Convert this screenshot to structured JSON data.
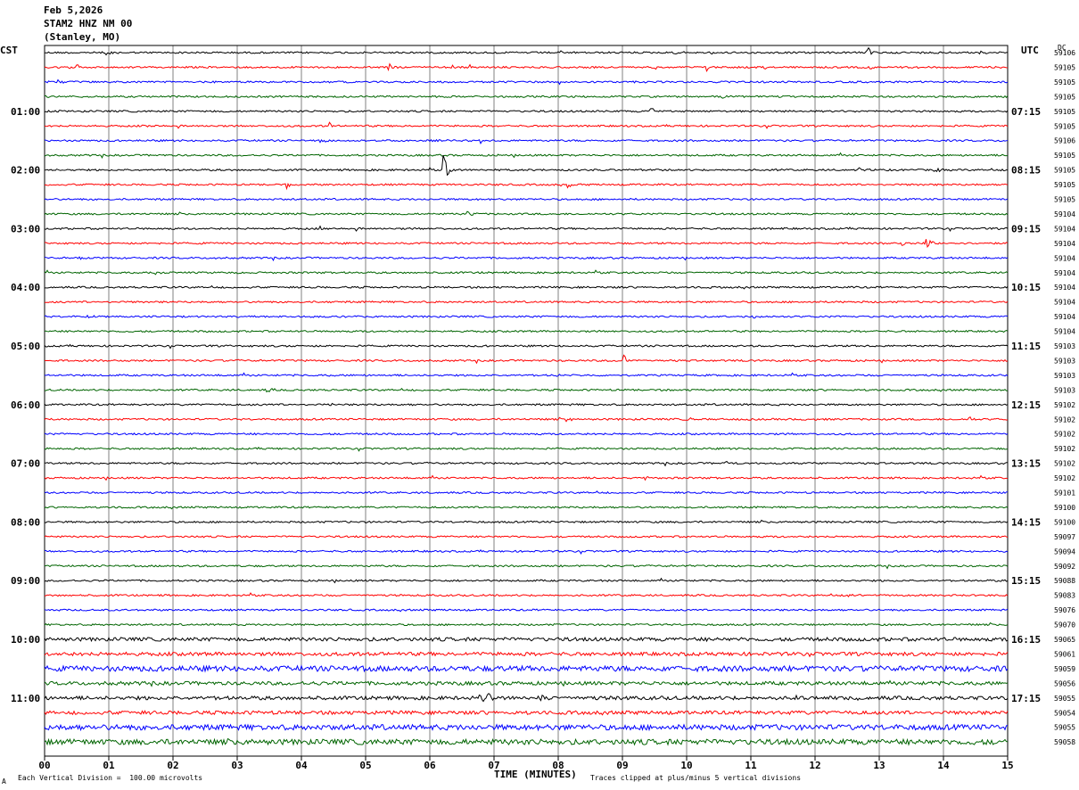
{
  "header": {
    "date": "Feb 5,2026",
    "station": "STAM2 HNZ NM 00",
    "location": "(Stanley, MO)"
  },
  "axes": {
    "left_label": "CST",
    "right_label": "UTC",
    "dc_label": "DC",
    "xlabel": "TIME (MINUTES)"
  },
  "footer": {
    "left_note": "Each Vertical Division =  100.00 microvolts",
    "right_note": "Traces clipped at plus/minus 5 vertical divisions",
    "corner_mark": "A"
  },
  "colors": {
    "trace_cycle": [
      "#000000",
      "#ff0000",
      "#0000ff",
      "#006400"
    ],
    "grid": "#808080"
  },
  "chart_data": {
    "type": "line",
    "title": "",
    "x_range": [
      0,
      15
    ],
    "x_ticks": [
      "00",
      "01",
      "02",
      "03",
      "04",
      "05",
      "06",
      "07",
      "08",
      "09",
      "10",
      "11",
      "12",
      "13",
      "14",
      "15"
    ],
    "cst_hours": [
      "01:00",
      "02:00",
      "03:00",
      "04:00",
      "05:00",
      "06:00",
      "07:00",
      "08:00",
      "09:00",
      "10:00",
      "11:00"
    ],
    "utc_hours": [
      "07:15",
      "08:15",
      "09:15",
      "10:15",
      "11:15",
      "12:15",
      "13:15",
      "14:15",
      "15:15",
      "16:15",
      "17:15"
    ],
    "dc_offsets": [
      "59106",
      "59105",
      "59105",
      "59105",
      "59105",
      "59105",
      "59106",
      "59105",
      "59105",
      "59105",
      "59105",
      "59104",
      "59104",
      "59104",
      "59104",
      "59104",
      "59104",
      "59104",
      "59104",
      "59104",
      "59103",
      "59103",
      "59103",
      "59103",
      "59102",
      "59102",
      "59102",
      "59102",
      "59102",
      "59102",
      "59101",
      "59100",
      "59100",
      "59097",
      "59094",
      "59092",
      "59088",
      "59083",
      "59076",
      "59070",
      "59065",
      "59061",
      "59059",
      "59056",
      "59055",
      "59054",
      "59055",
      "59058"
    ],
    "noise_level": [
      1,
      1,
      1,
      1,
      1,
      1,
      1,
      1,
      1,
      1,
      1,
      1,
      1,
      1,
      1,
      1,
      1,
      1,
      1,
      1,
      1,
      1,
      1,
      1,
      1,
      1,
      1,
      1,
      1,
      1,
      1,
      1,
      1,
      1,
      1,
      1,
      1,
      1,
      1,
      1,
      2,
      2,
      3,
      2,
      2,
      2,
      3,
      3
    ],
    "events": [
      {
        "row": 0,
        "minute": 0.98,
        "amp": 3
      },
      {
        "row": 0,
        "minute": 9.83,
        "amp": 3
      },
      {
        "row": 0,
        "minute": 12.82,
        "amp": 6
      },
      {
        "row": 0,
        "minute": 14.58,
        "amp": 3
      },
      {
        "row": 1,
        "minute": 0.5,
        "amp": 3
      },
      {
        "row": 1,
        "minute": 1.55,
        "amp": 3
      },
      {
        "row": 1,
        "minute": 5.38,
        "amp": 4
      },
      {
        "row": 1,
        "minute": 10.32,
        "amp": 5
      },
      {
        "row": 1,
        "minute": 11.2,
        "amp": 5
      },
      {
        "row": 1,
        "minute": 12.82,
        "amp": 3
      },
      {
        "row": 2,
        "minute": 0.22,
        "amp": 3
      },
      {
        "row": 3,
        "minute": 10.58,
        "amp": 5
      },
      {
        "row": 4,
        "minute": 9.45,
        "amp": 5
      },
      {
        "row": 5,
        "minute": 1.62,
        "amp": 2
      },
      {
        "row": 5,
        "minute": 4.45,
        "amp": 4
      },
      {
        "row": 6,
        "minute": 4.3,
        "amp": 3
      },
      {
        "row": 8,
        "minute": 6.22,
        "amp": 18
      },
      {
        "row": 8,
        "minute": 12.7,
        "amp": 3
      },
      {
        "row": 8,
        "minute": 13.88,
        "amp": 3
      },
      {
        "row": 9,
        "minute": 3.78,
        "amp": 4
      },
      {
        "row": 9,
        "minute": 8.15,
        "amp": 3
      },
      {
        "row": 11,
        "minute": 6.6,
        "amp": 3
      },
      {
        "row": 12,
        "minute": 4.3,
        "amp": 2
      },
      {
        "row": 13,
        "minute": 13.38,
        "amp": 3
      },
      {
        "row": 13,
        "minute": 13.75,
        "amp": 7
      },
      {
        "row": 14,
        "minute": 0.55,
        "amp": 3
      },
      {
        "row": 15,
        "minute": 1.72,
        "amp": 3
      },
      {
        "row": 16,
        "minute": 10.4,
        "amp": 2
      },
      {
        "row": 18,
        "minute": 0.68,
        "amp": 2
      },
      {
        "row": 18,
        "minute": 2.22,
        "amp": 2
      },
      {
        "row": 18,
        "minute": 11.05,
        "amp": 3
      },
      {
        "row": 21,
        "minute": 9.02,
        "amp": 7
      },
      {
        "row": 22,
        "minute": 7.97,
        "amp": 3
      },
      {
        "row": 23,
        "minute": 3.48,
        "amp": 3
      },
      {
        "row": 24,
        "minute": 4.48,
        "amp": 2
      },
      {
        "row": 25,
        "minute": 8.15,
        "amp": 2
      },
      {
        "row": 25,
        "minute": 10.05,
        "amp": 2
      },
      {
        "row": 25,
        "minute": 14.42,
        "amp": 2
      },
      {
        "row": 28,
        "minute": 10.62,
        "amp": 2
      },
      {
        "row": 29,
        "minute": 9.35,
        "amp": 2
      },
      {
        "row": 37,
        "minute": 12.5,
        "amp": 2
      },
      {
        "row": 44,
        "minute": 6.8,
        "amp": 4
      },
      {
        "row": 44,
        "minute": 6.9,
        "amp": 5
      },
      {
        "row": 44,
        "minute": 7.75,
        "amp": 4
      },
      {
        "row": 44,
        "minute": 8.9,
        "amp": 3
      },
      {
        "row": 44,
        "minute": 11.7,
        "amp": 3
      }
    ]
  }
}
